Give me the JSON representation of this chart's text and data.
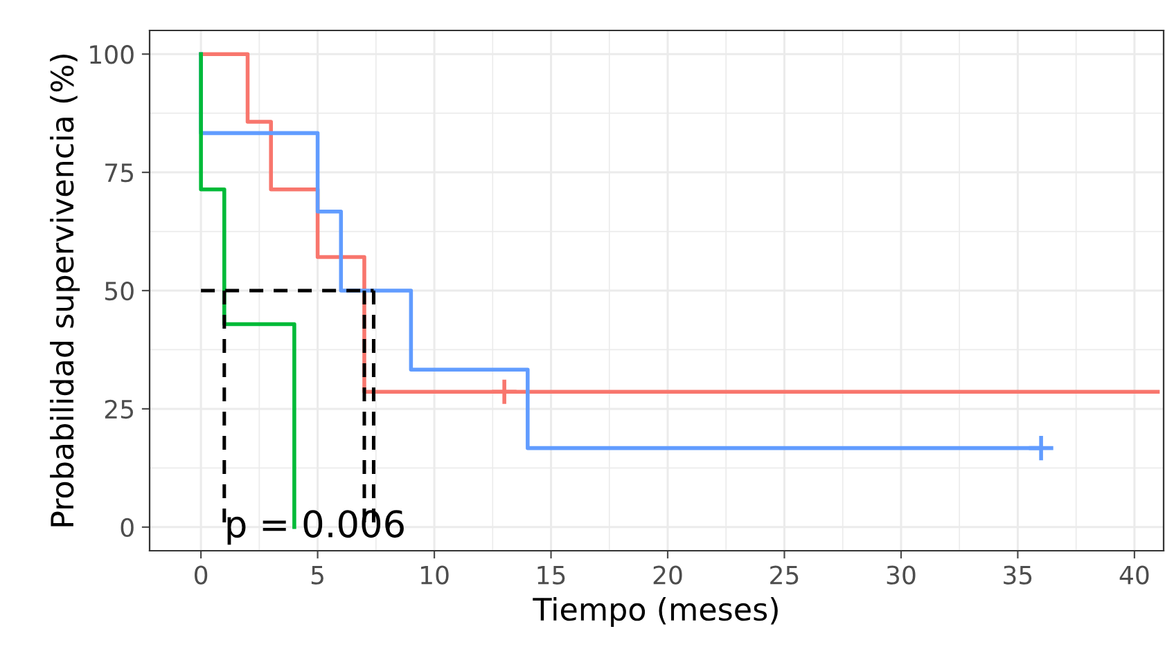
{
  "chart_data": {
    "type": "step",
    "xlabel": "Tiempo (meses)",
    "ylabel": "Probabilidad supervivencia (%)",
    "xlim": [
      -2.2,
      41.25
    ],
    "ylim": [
      -5,
      105
    ],
    "xticks": [
      0,
      5,
      10,
      15,
      20,
      25,
      30,
      35,
      40
    ],
    "yticks": [
      0,
      25,
      50,
      75,
      100
    ],
    "grid": true,
    "legend": false,
    "series": [
      {
        "color": "#f8766d",
        "x": [
          0,
          2,
          3,
          5,
          7,
          41
        ],
        "values": [
          100,
          85.7,
          71.4,
          57.1,
          28.6,
          28.6
        ]
      },
      {
        "color": "#619cff",
        "x": [
          0,
          0,
          5,
          6,
          9,
          14,
          36
        ],
        "values": [
          100,
          83.3,
          66.7,
          50,
          33.3,
          16.7,
          16.7
        ]
      },
      {
        "color": "#00ba38",
        "x": [
          0,
          0,
          1,
          4,
          4
        ],
        "values": [
          100,
          71.4,
          42.9,
          0,
          0
        ]
      },
      {
        "type": "scatter",
        "marker": "cross",
        "color": "#f8766d",
        "x": [
          13
        ],
        "values": [
          28.6
        ]
      },
      {
        "type": "scatter",
        "marker": "cross",
        "color": "#619cff",
        "x": [
          36
        ],
        "values": [
          16.7
        ]
      },
      {
        "type": "line",
        "line_style": "dashed",
        "color": "#000000",
        "x": [
          0,
          7.4
        ],
        "values": [
          50,
          50
        ]
      },
      {
        "type": "line",
        "line_style": "dashed",
        "color": "#000000",
        "x": [
          1,
          1
        ],
        "values": [
          50,
          0
        ]
      },
      {
        "type": "line",
        "line_style": "dashed",
        "color": "#000000",
        "x": [
          7,
          7
        ],
        "values": [
          50,
          0
        ]
      },
      {
        "type": "line",
        "line_style": "dashed",
        "color": "#000000",
        "x": [
          7.4,
          7.4
        ],
        "values": [
          50,
          0
        ]
      }
    ],
    "annotations": [
      {
        "text": "p = 0.006",
        "x": 1,
        "y": 0
      }
    ]
  }
}
